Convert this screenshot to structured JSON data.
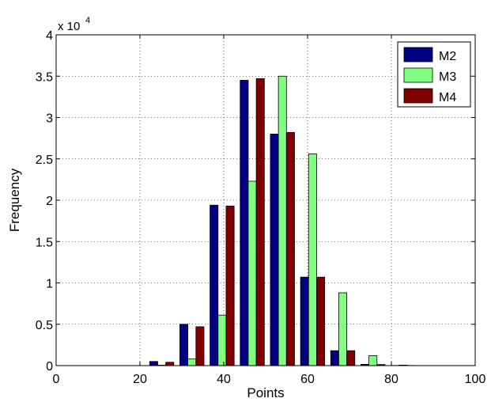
{
  "chart_data": {
    "type": "bar",
    "xlabel": "Points",
    "ylabel": "Frequency",
    "y_multiplier_text": "x 10",
    "y_multiplier_exp": "4",
    "xlim": [
      0,
      100
    ],
    "ylim": [
      0,
      40000
    ],
    "xticks": [
      "0",
      "20",
      "40",
      "60",
      "80",
      "100"
    ],
    "yticks": [
      "0",
      "0.5",
      "1",
      "1.5",
      "2",
      "2.5",
      "3",
      "3.5",
      "4"
    ],
    "grid": true,
    "legend_position": "top-right",
    "bin_width": 7.2,
    "x": [
      25.2,
      32.4,
      39.6,
      46.8,
      54.0,
      61.2,
      68.4,
      75.6,
      82.8
    ],
    "series": [
      {
        "name": "M2",
        "color": "#000080",
        "values": [
          500,
          5000,
          19400,
          34500,
          28000,
          10700,
          1800,
          150,
          20
        ]
      },
      {
        "name": "M3",
        "color": "#80ff80",
        "values": [
          50,
          800,
          6100,
          22300,
          35000,
          25600,
          8800,
          1200,
          60
        ]
      },
      {
        "name": "M4",
        "color": "#800000",
        "values": [
          400,
          4700,
          19300,
          34700,
          28200,
          10700,
          1800,
          130,
          20
        ]
      }
    ]
  }
}
